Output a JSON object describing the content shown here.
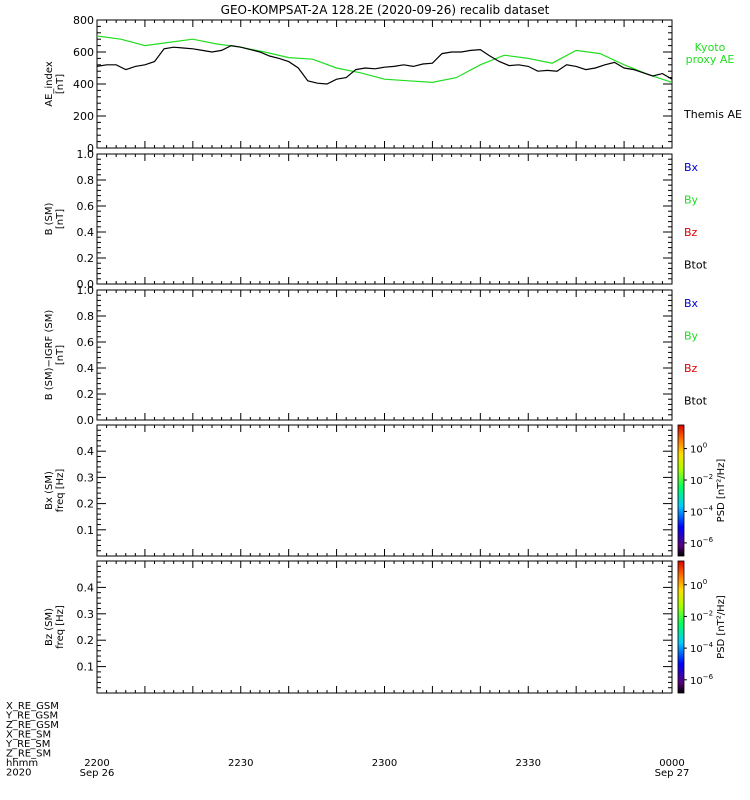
{
  "title": "GEO-KOMPSAT-2A 128.2E (2020-09-26) recalib dataset",
  "colors": {
    "kyoto": "#22dd22",
    "themis": "#000000",
    "bx": "#0000cc",
    "by": "#22dd22",
    "bz": "#dd0000",
    "btot": "#000000"
  },
  "chart_data": [
    {
      "type": "line",
      "ylabel": "AE_index [nT]",
      "ylabel_lines": [
        "AE_index",
        "[nT]"
      ],
      "ylim": [
        0,
        800
      ],
      "yticks": [
        0,
        200,
        400,
        600,
        800
      ],
      "ytick_labels": [
        "0",
        "200",
        "400",
        "600",
        "800"
      ],
      "x_unit": "minutes after 22:00 UT, 2020-09-26",
      "xlim": [
        0,
        120
      ],
      "series": [
        {
          "name": "Kyoto proxy AE",
          "legend_lines": [
            "Kyoto",
            "proxy AE"
          ],
          "color": "#22dd22",
          "x": [
            0,
            5,
            10,
            15,
            20,
            25,
            30,
            35,
            40,
            45,
            50,
            55,
            60,
            65,
            70,
            75,
            80,
            85,
            90,
            95,
            100,
            105,
            110,
            115,
            120
          ],
          "values": [
            700,
            680,
            640,
            660,
            680,
            650,
            630,
            600,
            565,
            555,
            500,
            470,
            430,
            420,
            410,
            440,
            520,
            580,
            560,
            530,
            610,
            590,
            520,
            460,
            410
          ]
        },
        {
          "name": "Themis AE",
          "legend_lines": [
            "Themis AE"
          ],
          "color": "#000000",
          "x": [
            0,
            2,
            4,
            6,
            8,
            10,
            12,
            14,
            16,
            18,
            20,
            22,
            24,
            26,
            28,
            30,
            32,
            34,
            36,
            38,
            40,
            42,
            44,
            46,
            48,
            50,
            52,
            54,
            56,
            58,
            60,
            62,
            64,
            66,
            68,
            70,
            72,
            74,
            76,
            78,
            80,
            82,
            84,
            86,
            88,
            90,
            92,
            94,
            96,
            98,
            100,
            102,
            104,
            106,
            108,
            110,
            112,
            114,
            116,
            118,
            120
          ],
          "values": [
            510,
            520,
            520,
            490,
            510,
            520,
            540,
            620,
            630,
            625,
            620,
            610,
            600,
            610,
            640,
            630,
            615,
            600,
            575,
            560,
            540,
            500,
            420,
            405,
            400,
            430,
            440,
            490,
            500,
            495,
            505,
            510,
            520,
            510,
            525,
            530,
            590,
            600,
            600,
            610,
            615,
            575,
            540,
            515,
            520,
            510,
            480,
            485,
            480,
            520,
            510,
            490,
            500,
            520,
            535,
            500,
            490,
            470,
            450,
            465,
            430
          ]
        }
      ]
    },
    {
      "type": "line",
      "ylabel": "B (SM) [nT]",
      "ylabel_lines": [
        "B (SM)",
        "[nT]"
      ],
      "ylim": [
        0.0,
        1.0
      ],
      "yticks": [
        0.0,
        0.2,
        0.4,
        0.6,
        0.8,
        1.0
      ],
      "ytick_labels": [
        "0.0",
        "0.2",
        "0.4",
        "0.6",
        "0.8",
        "1.0"
      ],
      "legend": [
        "Bx",
        "By",
        "Bz",
        "Btot"
      ],
      "series": []
    },
    {
      "type": "line",
      "ylabel": "B (SM)-IGRF (SM) [nT]",
      "ylabel_lines": [
        "B (SM)−IGRF (SM)",
        "[nT]"
      ],
      "ylim": [
        0.0,
        1.0
      ],
      "yticks": [
        0.0,
        0.2,
        0.4,
        0.6,
        0.8,
        1.0
      ],
      "ytick_labels": [
        "0.0",
        "0.2",
        "0.4",
        "0.6",
        "0.8",
        "1.0"
      ],
      "legend": [
        "Bx",
        "By",
        "Bz",
        "Btot"
      ],
      "series": []
    },
    {
      "type": "heatmap",
      "ylabel": "Bx (SM) freq [Hz]",
      "ylabel_lines": [
        "Bx (SM)",
        "freq [Hz]"
      ],
      "ylim": [
        0.0,
        0.5
      ],
      "yticks": [
        0.1,
        0.2,
        0.3,
        0.4
      ],
      "ytick_labels": [
        "0.1",
        "0.2",
        "0.3",
        "0.4"
      ],
      "colorbar": {
        "label": "PSD [nT²/Hz]",
        "tick_bases": [
          "10",
          "10",
          "10",
          "10"
        ],
        "tick_exponents": [
          "0",
          "−2",
          "−4",
          "−6"
        ]
      },
      "values": []
    },
    {
      "type": "heatmap",
      "ylabel": "Bz (SM) freq [Hz]",
      "ylabel_lines": [
        "Bz (SM)",
        "freq [Hz]"
      ],
      "ylim": [
        0.0,
        0.5
      ],
      "yticks": [
        0.1,
        0.2,
        0.3,
        0.4
      ],
      "ytick_labels": [
        "0.1",
        "0.2",
        "0.3",
        "0.4"
      ],
      "colorbar": {
        "label": "PSD [nT²/Hz]",
        "tick_bases": [
          "10",
          "10",
          "10",
          "10"
        ],
        "tick_exponents": [
          "0",
          "−2",
          "−4",
          "−6"
        ]
      },
      "values": []
    }
  ],
  "x_axis": {
    "ticks": [
      {
        "minutes": 0,
        "line1": "2200",
        "line2": "Sep 26"
      },
      {
        "minutes": 30,
        "line1": "2230",
        "line2": ""
      },
      {
        "minutes": 60,
        "line1": "2300",
        "line2": ""
      },
      {
        "minutes": 90,
        "line1": "2330",
        "line2": ""
      },
      {
        "minutes": 120,
        "line1": "0000",
        "line2": "Sep 27"
      }
    ],
    "row_labels": [
      "X_RE_GSM",
      "Y_RE_GSM",
      "Z_RE_GSM",
      "X_RE_SM",
      "Y_RE_SM",
      "Z_RE_SM",
      "hhmm",
      "2020"
    ]
  }
}
